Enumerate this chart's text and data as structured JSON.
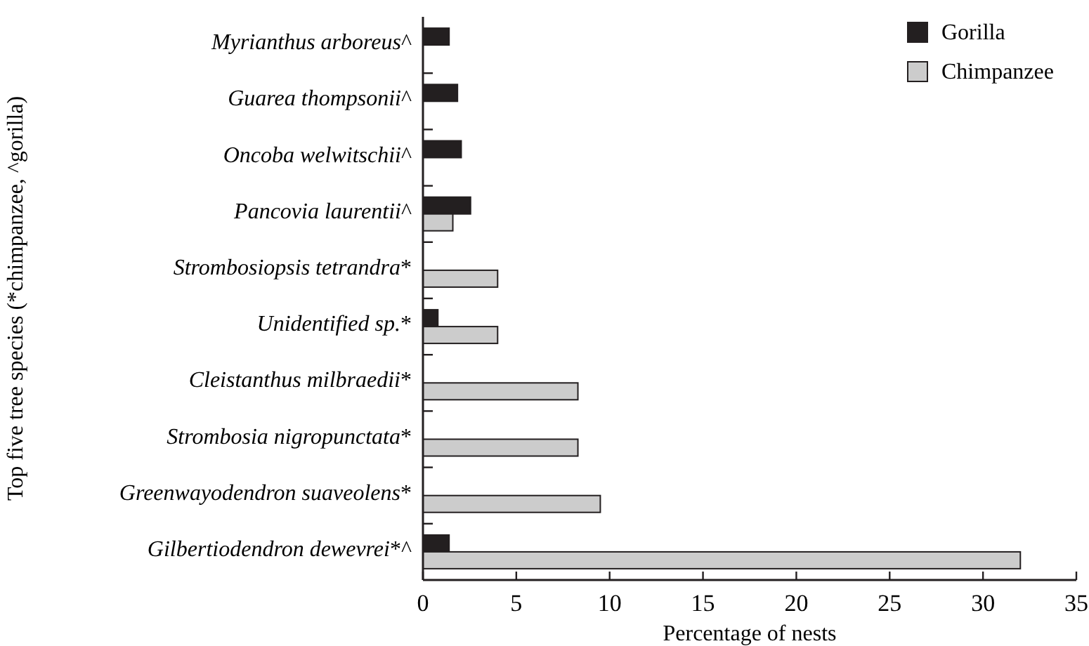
{
  "chart_data": {
    "type": "bar",
    "orientation": "horizontal",
    "xlabel": "Percentage of nests",
    "ylabel": "Top five tree species (*chimpanzee, ^gorilla)",
    "categories": [
      "Myrianthus arboreus^",
      "Guarea thompsonii^",
      "Oncoba welwitschii^",
      "Pancovia laurentii^",
      "Strombosiopsis tetrandra*",
      "Unidentified sp.*",
      "Cleistanthus milbraedii*",
      "Strombosia nigropunctata*",
      "Greenwayodendron suaveolens*",
      "Gilbertiodendron dewevrei*^"
    ],
    "series": [
      {
        "name": "Gorilla",
        "color": "#231f20",
        "values": [
          1.4,
          1.85,
          2.05,
          2.55,
          null,
          0.8,
          null,
          null,
          null,
          1.4
        ]
      },
      {
        "name": "Chimpanzee",
        "color": "#cccccc",
        "values": [
          null,
          null,
          null,
          1.6,
          4.0,
          4.0,
          8.3,
          8.3,
          9.5,
          32.0
        ]
      }
    ],
    "xlim": [
      0,
      35
    ],
    "xticks": [
      0,
      5,
      10,
      15,
      20,
      25,
      30,
      35
    ],
    "legend": "top right",
    "grid": false
  }
}
